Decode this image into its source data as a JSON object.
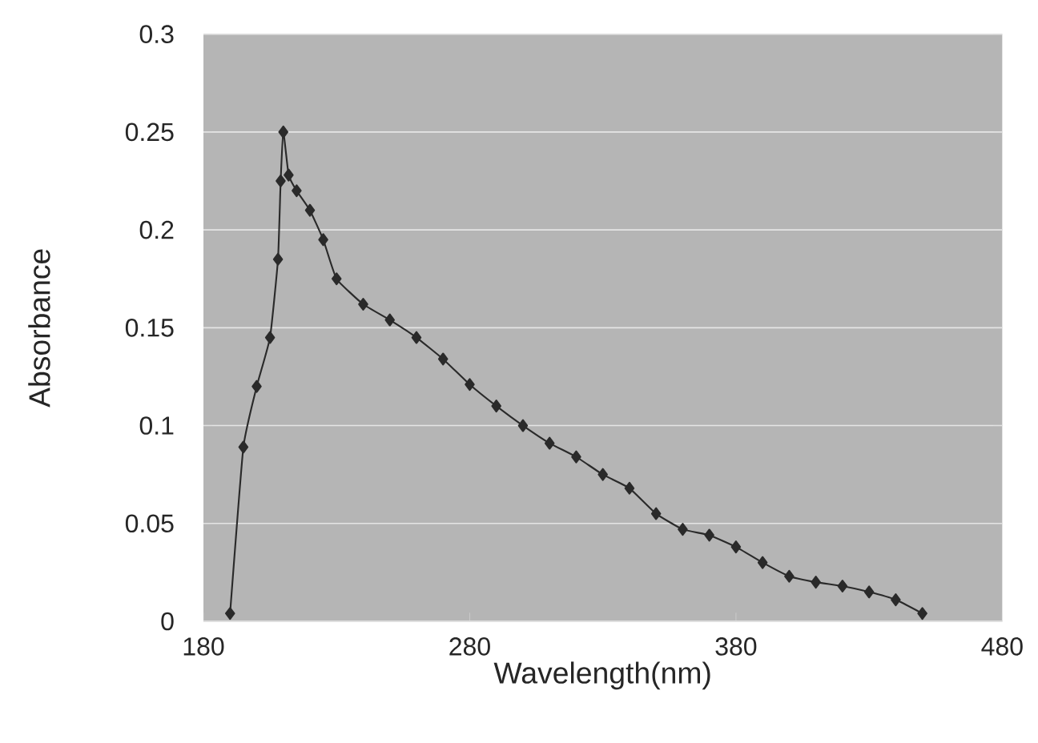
{
  "chart_data": {
    "type": "line",
    "xlabel": "Wavelength(nm)",
    "ylabel": "Absorbance",
    "x": [
      190,
      195,
      200,
      205,
      208,
      209,
      210,
      212,
      215,
      220,
      225,
      230,
      240,
      250,
      260,
      270,
      280,
      290,
      300,
      310,
      320,
      330,
      340,
      350,
      360,
      370,
      380,
      390,
      400,
      410,
      420,
      430,
      440,
      450
    ],
    "series": [
      {
        "color": "#2a2a2a",
        "values": [
          0.004,
          0.089,
          0.12,
          0.145,
          0.185,
          0.225,
          0.25,
          0.228,
          0.22,
          0.21,
          0.195,
          0.175,
          0.162,
          0.154,
          0.145,
          0.134,
          0.121,
          0.11,
          0.1,
          0.091,
          0.084,
          0.075,
          0.068,
          0.055,
          0.047,
          0.044,
          0.038,
          0.03,
          0.023,
          0.02,
          0.018,
          0.015,
          0.011,
          0.004
        ]
      }
    ],
    "xlim": [
      180,
      480
    ],
    "xticks": [
      180,
      280,
      380,
      480
    ],
    "ylim": [
      0,
      0.3
    ],
    "yticks": [
      0,
      0.05,
      0.1,
      0.15,
      0.2,
      0.25,
      0.3
    ],
    "grid": "y",
    "marker": "diamond",
    "line_style": "solid"
  }
}
